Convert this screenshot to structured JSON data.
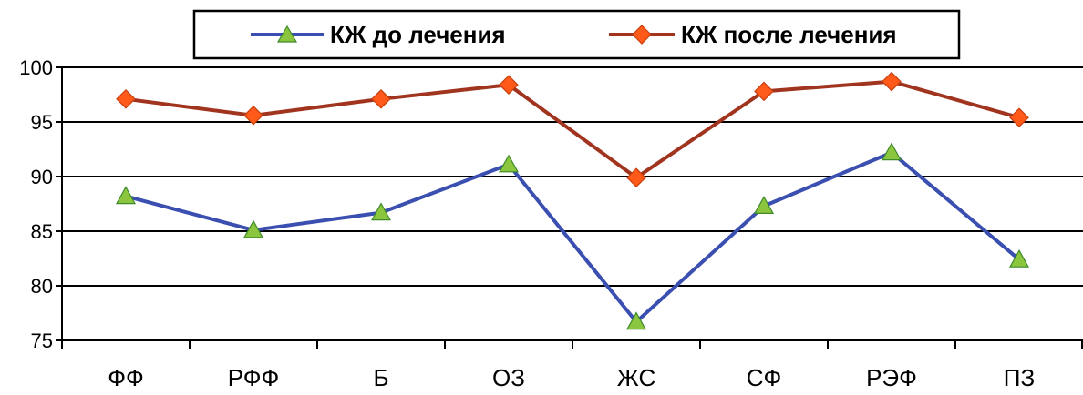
{
  "chart_data": {
    "type": "line",
    "categories": [
      "ФФ",
      "РФФ",
      "Б",
      "ОЗ",
      "ЖС",
      "СФ",
      "РЭФ",
      "ПЗ"
    ],
    "series": [
      {
        "name": "КЖ до лечения",
        "values": [
          88.2,
          85.1,
          86.7,
          91.1,
          76.7,
          87.3,
          92.2,
          82.4
        ],
        "color": "#3a4fb0",
        "marker": "triangle",
        "marker_color": "#8cc63f"
      },
      {
        "name": "КЖ после лечения",
        "values": [
          97.1,
          95.6,
          97.1,
          98.4,
          89.9,
          97.8,
          98.7,
          95.4
        ],
        "color": "#a0341e",
        "marker": "diamond",
        "marker_color": "#ff5a1a"
      }
    ],
    "ylim": [
      75,
      100
    ],
    "yticks": [
      "75",
      "80",
      "85",
      "90",
      "95",
      "100"
    ],
    "grid": true,
    "legend_position": "top-center"
  }
}
